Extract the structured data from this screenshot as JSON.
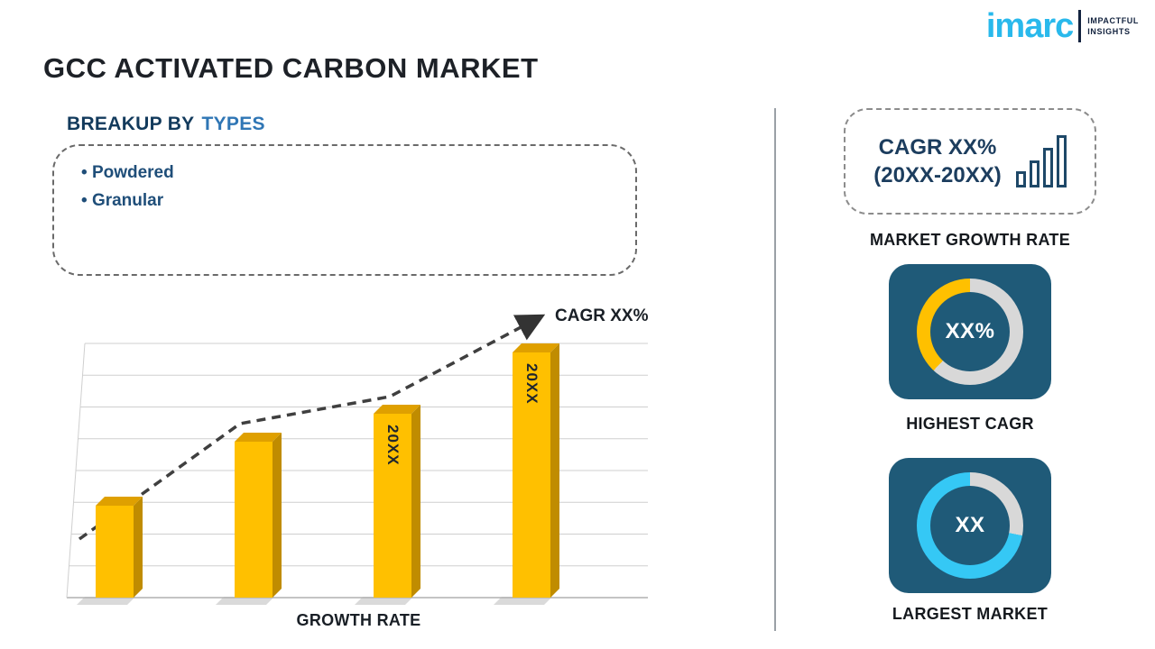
{
  "page": {
    "title": "GCC ACTIVATED CARBON MARKET"
  },
  "logo": {
    "brand": "imarc",
    "tagline_line1": "IMPACTFUL",
    "tagline_line2": "INSIGHTS"
  },
  "breakup": {
    "heading_prefix": "BREAKUP BY",
    "heading_highlight": "TYPES",
    "items": [
      "Powdered",
      "Granular"
    ]
  },
  "chart_data": {
    "type": "bar",
    "title": "Growth Rate bar chart with rising CAGR trend arrow",
    "xlabel": "GROWTH RATE",
    "ylabel": "",
    "categories": [
      "",
      "",
      "20XX",
      "20XX"
    ],
    "values": [
      36,
      61,
      72,
      96
    ],
    "ylim": [
      0,
      100
    ],
    "value_note": "relative heights; y-axis unlabeled in source",
    "bar_color": "#ffc000",
    "grid": true,
    "trend": {
      "label": "CAGR XX%",
      "points": [
        [
          18,
          262
        ],
        [
          196,
          134
        ],
        [
          362,
          104
        ],
        [
          528,
          16
        ]
      ]
    }
  },
  "sidebar": {
    "cagr_card": {
      "line1": "CAGR XX%",
      "line2": "(20XX-20XX)"
    },
    "market_growth_rate_label": "MARKET GROWTH RATE",
    "highest_cagr": {
      "value": "XX%",
      "label": "HIGHEST CAGR",
      "accent": "#ffc000",
      "ring_gray_pct": 62
    },
    "largest_market": {
      "value": "XX",
      "label": "LARGEST MARKET",
      "accent": "#35c8f5",
      "ring_gray_pct": 28
    }
  },
  "colors": {
    "gold": "#ffc000",
    "cyan": "#35c8f5",
    "navy_card": "#1f5a78",
    "brand_cyan": "#29b9ec",
    "ring_gray": "#d8d8d8"
  }
}
